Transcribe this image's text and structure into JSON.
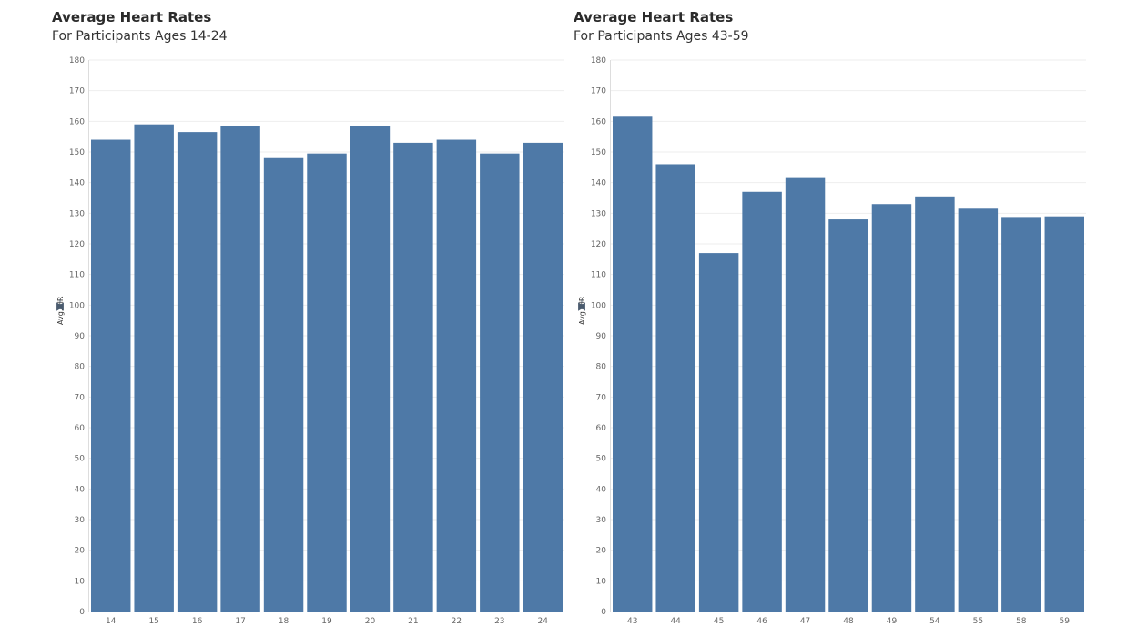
{
  "colors": {
    "bar": "#4e79a7",
    "grid": "#eeeeee",
    "axis_line": "#dddddd"
  },
  "chart_data": [
    {
      "type": "bar",
      "title": "Average Heart Rates",
      "subtitle": "For Participants Ages 14-24",
      "xlabel": "",
      "ylabel": "Avg. HR",
      "ylabel_icon": "pin-icon",
      "ylim": [
        0,
        180
      ],
      "yticks": [
        0,
        10,
        20,
        30,
        40,
        50,
        60,
        70,
        80,
        90,
        100,
        110,
        120,
        130,
        140,
        150,
        160,
        170,
        180
      ],
      "grid": true,
      "categories": [
        "14",
        "15",
        "16",
        "17",
        "18",
        "19",
        "20",
        "21",
        "22",
        "23",
        "24"
      ],
      "values": [
        154,
        159,
        156.5,
        158.5,
        148,
        149.5,
        158.5,
        153,
        154,
        149.5,
        153
      ]
    },
    {
      "type": "bar",
      "title": "Average Heart Rates",
      "subtitle": "For Participants Ages 43-59",
      "xlabel": "",
      "ylabel": "Avg. HR",
      "ylabel_icon": "pin-icon",
      "ylim": [
        0,
        180
      ],
      "yticks": [
        0,
        10,
        20,
        30,
        40,
        50,
        60,
        70,
        80,
        90,
        100,
        110,
        120,
        130,
        140,
        150,
        160,
        170,
        180
      ],
      "grid": true,
      "categories": [
        "43",
        "44",
        "45",
        "46",
        "47",
        "48",
        "49",
        "54",
        "55",
        "58",
        "59"
      ],
      "values": [
        161.5,
        146,
        117,
        137,
        141.5,
        128,
        133,
        135.5,
        131.5,
        128.5,
        129
      ]
    }
  ]
}
